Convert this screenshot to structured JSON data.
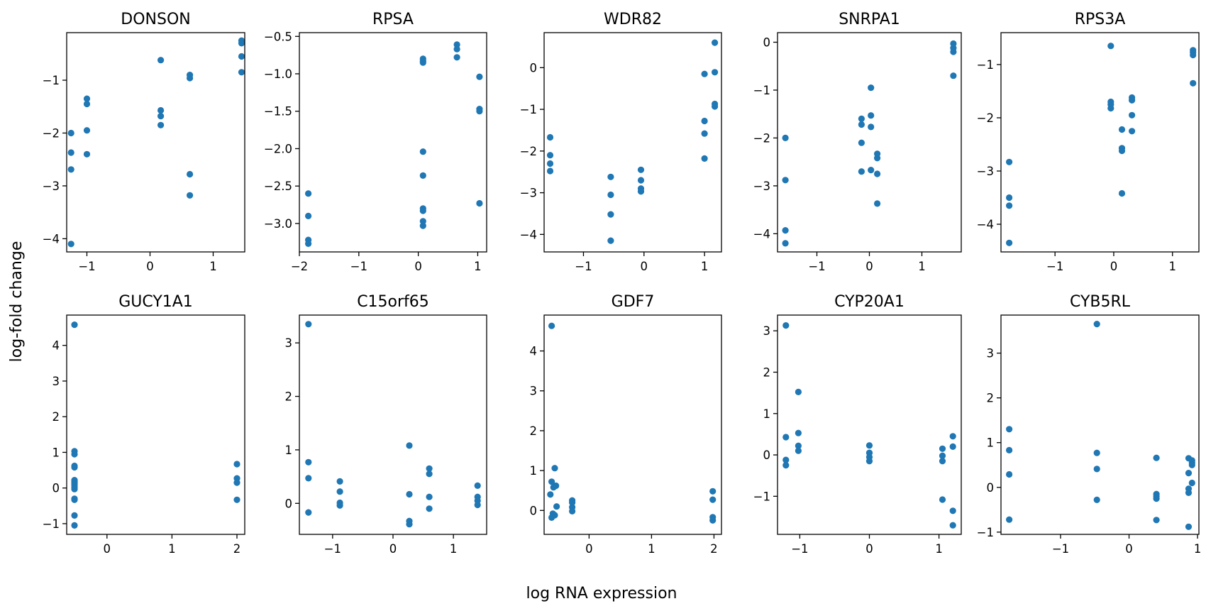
{
  "figure": {
    "xlabel": "log RNA expression",
    "ylabel": "log-fold change",
    "point_color": "#1f77b4"
  },
  "chart_data": [
    {
      "type": "scatter",
      "title": "DONSON",
      "xlim": [
        -1.32,
        1.5
      ],
      "ylim": [
        -4.25,
        -0.1
      ],
      "xticks": [
        -1,
        0,
        1
      ],
      "xtick_labels": [
        "−1",
        "0",
        "1"
      ],
      "yticks": [
        -4,
        -3,
        -2,
        -1
      ],
      "ytick_labels": [
        "−4",
        "−3",
        "−2",
        "−1"
      ],
      "x": [
        -1.25,
        -1.25,
        -1.25,
        -1.25,
        -1.0,
        -1.0,
        -1.0,
        -1.0,
        0.17,
        0.17,
        0.17,
        0.17,
        0.63,
        0.63,
        0.63,
        0.63,
        1.45,
        1.45,
        1.45,
        1.45
      ],
      "y": [
        -2.0,
        -2.37,
        -2.69,
        -4.1,
        -1.35,
        -1.45,
        -1.95,
        -2.4,
        -0.62,
        -1.57,
        -1.68,
        -1.85,
        -0.9,
        -0.96,
        -2.78,
        -3.18,
        -0.25,
        -0.3,
        -0.55,
        -0.85
      ]
    },
    {
      "type": "scatter",
      "title": "RPSA",
      "xlim": [
        -2.0,
        1.15
      ],
      "ylim": [
        -3.38,
        -0.45
      ],
      "xticks": [
        -2,
        -1,
        0,
        1
      ],
      "xtick_labels": [
        "−2",
        "−1",
        "0",
        "1"
      ],
      "yticks": [
        -3.0,
        -2.5,
        -2.0,
        -1.5,
        -1.0,
        -0.5
      ],
      "ytick_labels": [
        "−3.0",
        "−2.5",
        "−2.0",
        "−1.5",
        "−1.0",
        "−0.5"
      ],
      "x": [
        -1.85,
        -1.85,
        -1.85,
        -1.85,
        0.08,
        0.08,
        0.08,
        0.08,
        0.08,
        0.08,
        0.08,
        0.08,
        0.08,
        0.65,
        0.65,
        0.65,
        1.03,
        1.03,
        1.03,
        1.03
      ],
      "y": [
        -2.6,
        -2.9,
        -3.22,
        -3.27,
        -0.8,
        -0.83,
        -0.85,
        -2.04,
        -2.36,
        -2.8,
        -2.83,
        -2.97,
        -3.03,
        -0.61,
        -0.67,
        -0.78,
        -1.04,
        -1.47,
        -1.5,
        -2.73
      ]
    },
    {
      "type": "scatter",
      "title": "WDR82",
      "xlim": [
        -1.65,
        1.28
      ],
      "ylim": [
        -4.42,
        0.84
      ],
      "xticks": [
        -1,
        0,
        1
      ],
      "xtick_labels": [
        "−1",
        "0",
        "1"
      ],
      "yticks": [
        -4,
        -3,
        -2,
        -1,
        0
      ],
      "ytick_labels": [
        "−4",
        "−3",
        "−2",
        "−1",
        "0"
      ],
      "x": [
        -1.55,
        -1.55,
        -1.55,
        -1.55,
        -0.55,
        -0.55,
        -0.55,
        -0.55,
        -0.05,
        -0.05,
        -0.05,
        -0.05,
        1.0,
        1.0,
        1.0,
        1.0,
        1.17,
        1.17,
        1.17,
        1.17
      ],
      "y": [
        -1.67,
        -2.1,
        -2.3,
        -2.48,
        -2.62,
        -3.05,
        -3.52,
        -4.15,
        -2.45,
        -2.7,
        -2.9,
        -2.97,
        -0.15,
        -1.28,
        -1.58,
        -2.18,
        0.6,
        -0.11,
        -0.87,
        -0.93
      ]
    },
    {
      "type": "scatter",
      "title": "SNRPA1",
      "xlim": [
        -1.75,
        1.75
      ],
      "ylim": [
        -4.38,
        0.2
      ],
      "xticks": [
        -1,
        0,
        1
      ],
      "xtick_labels": [
        "−1",
        "0",
        "1"
      ],
      "yticks": [
        -4,
        -3,
        -2,
        -1,
        0
      ],
      "ytick_labels": [
        "−4",
        "−3",
        "−2",
        "−1",
        "0"
      ],
      "x": [
        -1.6,
        -1.6,
        -1.6,
        -1.6,
        -0.15,
        -0.15,
        -0.15,
        -0.15,
        0.03,
        0.03,
        0.03,
        0.03,
        0.15,
        0.15,
        0.15,
        0.15,
        1.6,
        1.6,
        1.6,
        1.6
      ],
      "y": [
        -2.0,
        -2.88,
        -3.93,
        -4.2,
        -1.6,
        -1.72,
        -2.1,
        -2.7,
        -0.95,
        -1.53,
        -1.77,
        -2.67,
        -2.33,
        -2.42,
        -2.75,
        -3.37,
        -0.03,
        -0.12,
        -0.2,
        -0.7
      ]
    },
    {
      "type": "scatter",
      "title": "RPS3A",
      "xlim": [
        -1.92,
        1.45
      ],
      "ylim": [
        -4.52,
        -0.4
      ],
      "xticks": [
        -1,
        0,
        1
      ],
      "xtick_labels": [
        "−1",
        "0",
        "1"
      ],
      "yticks": [
        -4,
        -3,
        -2,
        -1
      ],
      "ytick_labels": [
        "−4",
        "−3",
        "−2",
        "−1"
      ],
      "x": [
        -1.78,
        -1.78,
        -1.78,
        -1.78,
        -0.05,
        -0.05,
        -0.05,
        -0.05,
        0.14,
        0.14,
        0.14,
        0.14,
        0.31,
        0.31,
        0.31,
        0.31,
        1.35,
        1.35,
        1.35,
        1.35
      ],
      "y": [
        -2.83,
        -3.5,
        -3.65,
        -4.35,
        -0.65,
        -1.7,
        -1.75,
        -1.82,
        -2.22,
        -2.57,
        -2.62,
        -3.42,
        -1.62,
        -1.67,
        -1.95,
        -2.25,
        -0.73,
        -0.77,
        -0.82,
        -1.35
      ]
    },
    {
      "type": "scatter",
      "title": "GUCY1A1",
      "xlim": [
        -0.62,
        2.12
      ],
      "ylim": [
        -1.3,
        4.85
      ],
      "xticks": [
        0,
        1,
        2
      ],
      "xtick_labels": [
        "0",
        "1",
        "2"
      ],
      "yticks": [
        -1,
        0,
        1,
        2,
        3,
        4
      ],
      "ytick_labels": [
        "−1",
        "0",
        "1",
        "2",
        "3",
        "4"
      ],
      "x": [
        -0.5,
        -0.5,
        -0.5,
        -0.5,
        -0.5,
        -0.5,
        -0.5,
        -0.5,
        -0.5,
        -0.5,
        -0.5,
        -0.5,
        -0.5,
        -0.5,
        -0.5,
        -0.5,
        2.0,
        2.0,
        2.0,
        2.0
      ],
      "y": [
        4.58,
        1.03,
        0.95,
        0.62,
        0.58,
        0.22,
        0.18,
        0.12,
        0.08,
        0.02,
        -0.03,
        -0.3,
        -0.33,
        -0.77,
        -1.05,
        0.15,
        0.67,
        0.27,
        0.15,
        -0.33
      ]
    },
    {
      "type": "scatter",
      "title": "C15orf65",
      "xlim": [
        -1.55,
        1.55
      ],
      "ylim": [
        -0.58,
        3.52
      ],
      "xticks": [
        -1,
        0,
        1
      ],
      "xtick_labels": [
        "−1",
        "0",
        "1"
      ],
      "yticks": [
        0,
        1,
        2,
        3
      ],
      "ytick_labels": [
        "0",
        "1",
        "2",
        "3"
      ],
      "x": [
        -1.4,
        -1.4,
        -1.4,
        -1.4,
        -0.88,
        -0.88,
        -0.88,
        -0.88,
        0.27,
        0.27,
        0.27,
        0.27,
        0.6,
        0.6,
        0.6,
        0.6,
        1.4,
        1.4,
        1.4,
        1.4
      ],
      "y": [
        3.35,
        0.77,
        0.47,
        -0.17,
        0.41,
        0.22,
        0.01,
        -0.04,
        1.08,
        0.17,
        -0.33,
        -0.39,
        0.65,
        0.55,
        0.12,
        -0.1,
        0.33,
        0.12,
        0.05,
        -0.03
      ]
    },
    {
      "type": "scatter",
      "title": "GDF7",
      "xlim": [
        -0.72,
        2.12
      ],
      "ylim": [
        -0.6,
        4.9
      ],
      "xticks": [
        0,
        1,
        2
      ],
      "xtick_labels": [
        "0",
        "1",
        "2"
      ],
      "yticks": [
        0,
        1,
        2,
        3,
        4
      ],
      "ytick_labels": [
        "0",
        "1",
        "2",
        "3",
        "4"
      ],
      "x": [
        -0.6,
        -0.55,
        -0.6,
        -0.62,
        -0.53,
        -0.57,
        -0.52,
        -0.58,
        -0.55,
        -0.6,
        -0.27,
        -0.27,
        -0.27,
        -0.27,
        1.98,
        1.98,
        1.98,
        1.98
      ],
      "y": [
        4.63,
        1.06,
        0.72,
        0.4,
        0.62,
        0.58,
        0.1,
        -0.08,
        -0.12,
        -0.18,
        0.25,
        0.2,
        0.08,
        -0.02,
        0.48,
        0.27,
        -0.17,
        -0.25
      ]
    },
    {
      "type": "scatter",
      "title": "CYP20A1",
      "xlim": [
        -1.32,
        1.32
      ],
      "ylim": [
        -1.92,
        3.38
      ],
      "xticks": [
        -1,
        0,
        1
      ],
      "xtick_labels": [
        "−1",
        "0",
        "1"
      ],
      "yticks": [
        -1,
        0,
        1,
        2,
        3
      ],
      "ytick_labels": [
        "−1",
        "0",
        "1",
        "2",
        "3"
      ],
      "x": [
        -1.2,
        -1.2,
        -1.2,
        -1.2,
        -1.02,
        -1.02,
        -1.02,
        -1.02,
        0.0,
        0.0,
        0.0,
        0.0,
        1.05,
        1.05,
        1.05,
        1.05,
        1.2,
        1.2,
        1.2,
        1.2
      ],
      "y": [
        3.13,
        0.43,
        -0.12,
        -0.25,
        1.52,
        0.53,
        0.22,
        0.1,
        0.23,
        0.05,
        -0.05,
        -0.15,
        0.15,
        -0.02,
        -0.15,
        -1.08,
        0.45,
        0.2,
        -1.35,
        -1.7
      ]
    },
    {
      "type": "scatter",
      "title": "CYB5RL",
      "xlim": [
        -1.87,
        1.02
      ],
      "ylim": [
        -1.05,
        3.85
      ],
      "xticks": [
        -1,
        0,
        1
      ],
      "xtick_labels": [
        "−1",
        "0",
        "1"
      ],
      "yticks": [
        -1,
        0,
        1,
        2,
        3
      ],
      "ytick_labels": [
        "−1",
        "0",
        "1",
        "2",
        "3"
      ],
      "x": [
        -1.75,
        -1.75,
        -1.75,
        -1.75,
        -0.47,
        -0.47,
        -0.47,
        -0.47,
        0.4,
        0.4,
        0.4,
        0.4,
        0.4,
        0.87,
        0.87,
        0.87,
        0.87,
        0.92,
        0.92,
        0.92,
        0.92,
        0.87
      ],
      "y": [
        1.3,
        0.83,
        0.29,
        -0.72,
        3.65,
        0.77,
        0.41,
        -0.28,
        0.66,
        -0.15,
        -0.2,
        -0.25,
        -0.73,
        0.65,
        0.32,
        -0.12,
        -0.88,
        0.6,
        0.55,
        0.5,
        0.1,
        -0.03
      ]
    }
  ]
}
